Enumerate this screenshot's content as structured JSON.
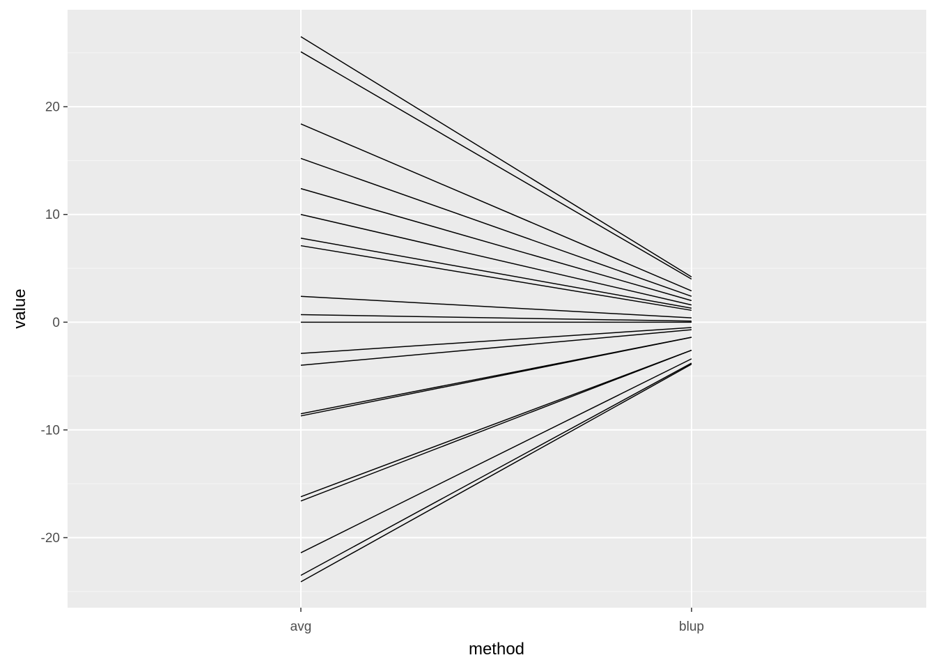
{
  "chart_data": {
    "type": "line",
    "title": "",
    "xlabel": "method",
    "ylabel": "value",
    "categories": [
      "avg",
      "blup"
    ],
    "ylim": [
      -26.5,
      29.0
    ],
    "y_ticks": [
      -20,
      -10,
      0,
      10,
      20
    ],
    "y_tick_labels": [
      "-20",
      "-10",
      "0",
      "10",
      "20"
    ],
    "grid": true,
    "legend": "none",
    "colors": {
      "panel_background": "#ebebeb",
      "grid_major": "#ffffff",
      "grid_minor": "#f5f5f5",
      "line": "#000000",
      "tick_label": "#4d4d4d",
      "axis_title": "#000000"
    },
    "series": [
      {
        "values": [
          26.5,
          4.2
        ]
      },
      {
        "values": [
          25.1,
          4.0
        ]
      },
      {
        "values": [
          18.4,
          2.9
        ]
      },
      {
        "values": [
          15.2,
          2.4
        ]
      },
      {
        "values": [
          12.4,
          2.0
        ]
      },
      {
        "values": [
          10.0,
          1.6
        ]
      },
      {
        "values": [
          7.8,
          1.3
        ]
      },
      {
        "values": [
          7.1,
          1.1
        ]
      },
      {
        "values": [
          2.4,
          0.4
        ]
      },
      {
        "values": [
          0.7,
          0.1
        ]
      },
      {
        "values": [
          0.0,
          0.0
        ]
      },
      {
        "values": [
          -2.9,
          -0.5
        ]
      },
      {
        "values": [
          -4.0,
          -0.7
        ]
      },
      {
        "values": [
          -8.5,
          -1.4
        ]
      },
      {
        "values": [
          -8.7,
          -1.4
        ]
      },
      {
        "values": [
          -16.2,
          -2.6
        ]
      },
      {
        "values": [
          -16.6,
          -2.6
        ]
      },
      {
        "values": [
          -21.4,
          -3.4
        ]
      },
      {
        "values": [
          -23.5,
          -3.8
        ]
      },
      {
        "values": [
          -24.1,
          -3.9
        ]
      }
    ]
  }
}
